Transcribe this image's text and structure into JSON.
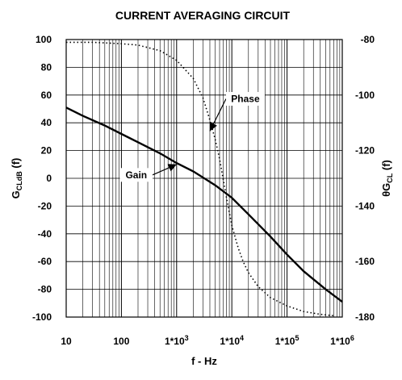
{
  "chart_data": {
    "type": "line",
    "title": "CURRENT AVERAGING CIRCUIT",
    "xlabel": "f - Hz",
    "ylabel_left": {
      "main": "G",
      "sub": "CLdB",
      "suffix": " (f)"
    },
    "ylabel_right": {
      "prefix": "θG",
      "sub": "CL",
      "suffix": " (f)"
    },
    "x_scale": "log",
    "xlim": [
      10,
      1000000
    ],
    "x_ticks": [
      {
        "value": 10,
        "label": "10",
        "base": "",
        "exp": ""
      },
      {
        "value": 100,
        "label": "100",
        "base": "",
        "exp": ""
      },
      {
        "value": 1000,
        "label": "",
        "base": "1*10",
        "exp": "3"
      },
      {
        "value": 10000,
        "label": "",
        "base": "1*10",
        "exp": "4"
      },
      {
        "value": 100000,
        "label": "",
        "base": "1*10",
        "exp": "5"
      },
      {
        "value": 1000000,
        "label": "",
        "base": "1*10",
        "exp": "6"
      }
    ],
    "ylim_left": [
      -100,
      100
    ],
    "y_ticks_left": [
      "100",
      "80",
      "60",
      "40",
      "20",
      "0",
      "-20",
      "-40",
      "-60",
      "-80",
      "-100"
    ],
    "ylim_right": [
      -180,
      -80
    ],
    "y_ticks_right": [
      "-80",
      "-100",
      "-120",
      "-140",
      "-160",
      "-180"
    ],
    "grid": true,
    "series": [
      {
        "name": "Gain",
        "axis": "left",
        "style": "solid",
        "x": [
          10,
          20,
          50,
          100,
          200,
          500,
          1000,
          2000,
          5000,
          10000,
          20000,
          50000,
          100000,
          200000,
          500000,
          1000000
        ],
        "y": [
          51,
          45,
          38,
          32,
          26,
          18,
          11,
          5,
          -5,
          -14,
          -26,
          -42,
          -55,
          -67,
          -80,
          -89
        ]
      },
      {
        "name": "Phase",
        "axis": "right",
        "style": "dotted",
        "x": [
          10,
          30,
          100,
          200,
          500,
          1000,
          2000,
          3000,
          4000,
          5000,
          6000,
          8000,
          10000,
          13000,
          16000,
          20000,
          30000,
          50000,
          100000,
          200000,
          400000,
          700000
        ],
        "y": [
          -81,
          -81,
          -81.5,
          -82,
          -84,
          -87.5,
          -94,
          -101,
          -109,
          -116,
          -123,
          -137,
          -147,
          -155,
          -160,
          -164,
          -169,
          -173,
          -176,
          -178,
          -179,
          -179.5
        ]
      }
    ],
    "annotations": [
      {
        "text": "Phase",
        "target_series": "Phase",
        "target_x": 4000,
        "target_y": -113
      },
      {
        "text": "Gain",
        "target_series": "Gain",
        "target_x": 1000,
        "target_y": 10
      }
    ]
  }
}
